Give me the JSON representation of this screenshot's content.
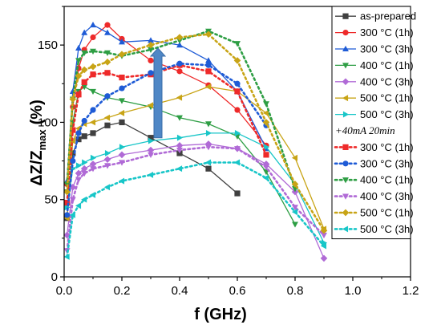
{
  "chart_data": {
    "type": "line",
    "xlabel": "f (GHz)",
    "ylabel_main": "ΔZ/Z",
    "ylabel_sub": "max",
    "ylabel_unit": "(%)",
    "xlim": [
      0.0,
      1.2
    ],
    "ylim": [
      0,
      175
    ],
    "xticks": [
      "0.0",
      "0.2",
      "0.4",
      "0.6",
      "0.8",
      "1.0",
      "1.2"
    ],
    "xtick_values": [
      0.0,
      0.2,
      0.4,
      0.6,
      0.8,
      1.0,
      1.2
    ],
    "yticks": [
      "0",
      "50",
      "100",
      "150"
    ],
    "ytick_values": [
      0,
      50,
      100,
      150
    ],
    "legend_position": "top-right",
    "legend_header": "+40mA 20min",
    "annotation": "upward arrow",
    "series": [
      {
        "name": "as-prepared",
        "color": "#404040",
        "marker": "square",
        "dash": "solid",
        "x": [
          0.01,
          0.03,
          0.05,
          0.07,
          0.1,
          0.15,
          0.2,
          0.3,
          0.4,
          0.5,
          0.6
        ],
        "y": [
          38,
          80,
          89,
          91,
          93,
          98,
          100,
          90,
          80,
          70,
          54
        ]
      },
      {
        "name": "300 °C (1h)",
        "color": "#ee2a2a",
        "marker": "circle",
        "dash": "solid",
        "x": [
          0.01,
          0.03,
          0.05,
          0.07,
          0.1,
          0.15,
          0.2,
          0.3,
          0.4,
          0.5,
          0.6,
          0.7
        ],
        "y": [
          60,
          110,
          135,
          147,
          155,
          163,
          154,
          140,
          133,
          124,
          108,
          85
        ]
      },
      {
        "name": "300 °C (3h)",
        "color": "#1e5bd6",
        "marker": "triangle-up",
        "dash": "solid",
        "x": [
          0.01,
          0.03,
          0.05,
          0.07,
          0.1,
          0.15,
          0.2,
          0.3,
          0.4,
          0.5,
          0.6,
          0.7
        ],
        "y": [
          62,
          120,
          148,
          158,
          163,
          158,
          152,
          153,
          150,
          140,
          120,
          83
        ]
      },
      {
        "name": "400 °C (1h)",
        "color": "#2e9e44",
        "marker": "triangle-down",
        "dash": "solid",
        "x": [
          0.01,
          0.03,
          0.05,
          0.07,
          0.1,
          0.15,
          0.2,
          0.3,
          0.4,
          0.5,
          0.6,
          0.7,
          0.8
        ],
        "y": [
          55,
          100,
          120,
          123,
          120,
          116,
          114,
          110,
          103,
          99,
          91,
          68,
          34
        ]
      },
      {
        "name": "400 °C (3h)",
        "color": "#b06ad6",
        "marker": "diamond",
        "dash": "solid",
        "x": [
          0.01,
          0.03,
          0.05,
          0.07,
          0.1,
          0.15,
          0.2,
          0.3,
          0.4,
          0.5,
          0.6,
          0.7,
          0.8,
          0.9
        ],
        "y": [
          27,
          58,
          67,
          70,
          73,
          76,
          79,
          82,
          85,
          86,
          83,
          73,
          55,
          12
        ]
      },
      {
        "name": "500 °C (1h)",
        "color": "#c8a416",
        "marker": "triangle-left",
        "dash": "solid",
        "x": [
          0.01,
          0.03,
          0.05,
          0.07,
          0.1,
          0.15,
          0.2,
          0.3,
          0.4,
          0.5,
          0.6,
          0.7,
          0.8,
          0.9
        ],
        "y": [
          38,
          88,
          96,
          99,
          100,
          103,
          106,
          111,
          116,
          123,
          120,
          106,
          77,
          31
        ]
      },
      {
        "name": "500 °C (3h)",
        "color": "#18c6c8",
        "marker": "triangle-right",
        "dash": "solid",
        "x": [
          0.01,
          0.03,
          0.05,
          0.07,
          0.1,
          0.15,
          0.2,
          0.3,
          0.4,
          0.5,
          0.6,
          0.7,
          0.8,
          0.9
        ],
        "y": [
          45,
          70,
          72,
          74,
          77,
          80,
          84,
          88,
          90,
          93,
          93,
          84,
          60,
          22
        ]
      },
      {
        "name": "300 °C (1h)",
        "color": "#ee2a2a",
        "marker": "square",
        "dash": "dotted",
        "x": [
          0.01,
          0.03,
          0.05,
          0.07,
          0.1,
          0.15,
          0.2,
          0.3,
          0.4,
          0.5,
          0.6,
          0.7
        ],
        "y": [
          48,
          95,
          118,
          126,
          131,
          132,
          129,
          131,
          137,
          133,
          120,
          79
        ]
      },
      {
        "name": "300 °C (3h)",
        "color": "#1e5bd6",
        "marker": "circle",
        "dash": "dotted",
        "x": [
          0.01,
          0.03,
          0.05,
          0.07,
          0.1,
          0.15,
          0.2,
          0.3,
          0.4,
          0.5,
          0.6,
          0.7
        ],
        "y": [
          40,
          75,
          93,
          101,
          108,
          117,
          122,
          132,
          138,
          137,
          125,
          98
        ]
      },
      {
        "name": "400 °C (1h)",
        "color": "#2e9e44",
        "marker": "triangle-down",
        "dash": "dotted",
        "x": [
          0.01,
          0.03,
          0.05,
          0.07,
          0.1,
          0.15,
          0.2,
          0.3,
          0.4,
          0.5,
          0.6,
          0.7,
          0.8
        ],
        "y": [
          60,
          115,
          140,
          145,
          146,
          145,
          143,
          147,
          153,
          159,
          151,
          112,
          57
        ]
      },
      {
        "name": "400 °C (3h)",
        "color": "#b06ad6",
        "marker": "triangle-down",
        "dash": "dotted",
        "x": [
          0.01,
          0.03,
          0.05,
          0.07,
          0.1,
          0.15,
          0.2,
          0.3,
          0.4,
          0.5,
          0.6,
          0.7,
          0.8,
          0.9
        ],
        "y": [
          17,
          50,
          63,
          67,
          70,
          72,
          74,
          79,
          82,
          84,
          83,
          71,
          45,
          27
        ]
      },
      {
        "name": "500 °C (1h)",
        "color": "#c8a416",
        "marker": "diamond",
        "dash": "dotted",
        "x": [
          0.01,
          0.03,
          0.05,
          0.07,
          0.1,
          0.15,
          0.2,
          0.3,
          0.4,
          0.5,
          0.6,
          0.7,
          0.8,
          0.9
        ],
        "y": [
          55,
          115,
          130,
          134,
          136,
          139,
          144,
          150,
          155,
          157,
          140,
          100,
          60,
          30
        ]
      },
      {
        "name": "500 °C (3h)",
        "color": "#18c6c8",
        "marker": "triangle-left",
        "dash": "dotted",
        "x": [
          0.01,
          0.03,
          0.05,
          0.07,
          0.1,
          0.15,
          0.2,
          0.3,
          0.4,
          0.5,
          0.6,
          0.7,
          0.8,
          0.9
        ],
        "y": [
          13,
          40,
          46,
          50,
          53,
          58,
          62,
          66,
          70,
          74,
          74,
          64,
          42,
          20
        ]
      }
    ]
  }
}
